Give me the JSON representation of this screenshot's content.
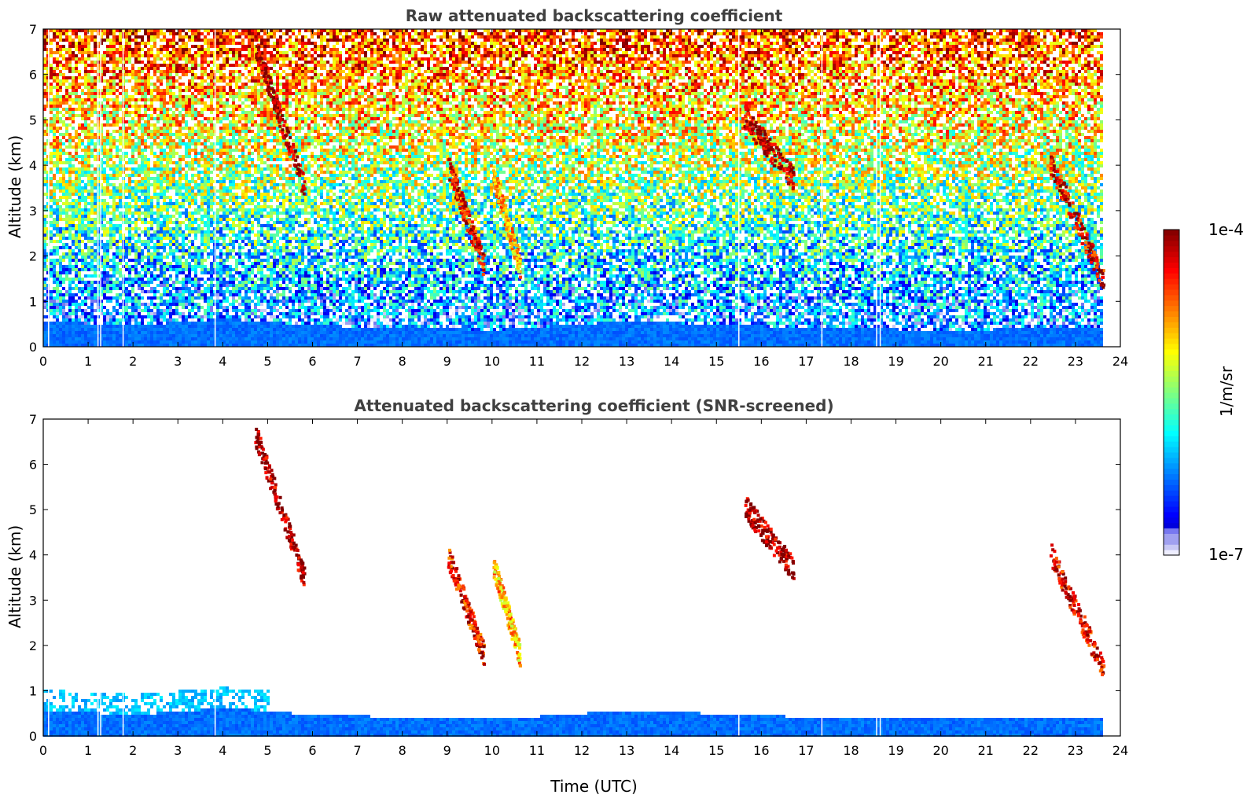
{
  "chart_data": [
    {
      "type": "heatmap",
      "title": "Raw attenuated backscattering coefficient",
      "xlabel": "",
      "ylabel": "Altitude (km)",
      "xlim": [
        0,
        24
      ],
      "ylim": [
        0,
        7
      ],
      "x_ticks": [
        0,
        1,
        2,
        3,
        4,
        5,
        6,
        7,
        8,
        9,
        10,
        11,
        12,
        13,
        14,
        15,
        16,
        17,
        18,
        19,
        20,
        21,
        22,
        23,
        24
      ],
      "y_ticks": [
        0,
        1,
        2,
        3,
        4,
        5,
        6,
        7
      ],
      "data_end_time": 23.6,
      "boundary_layer_top_km": [
        {
          "t": 0,
          "h": 0.6
        },
        {
          "t": 2,
          "h": 0.5
        },
        {
          "t": 4,
          "h": 0.65
        },
        {
          "t": 6,
          "h": 0.5
        },
        {
          "t": 10,
          "h": 0.4
        },
        {
          "t": 13,
          "h": 0.6
        },
        {
          "t": 17,
          "h": 0.45
        },
        {
          "t": 20,
          "h": 0.4
        },
        {
          "t": 23.6,
          "h": 0.45
        }
      ],
      "features": [
        {
          "name": "cirrus fall streak 1",
          "t_start": 4.7,
          "t_end": 5.8,
          "alt_top": 6.7,
          "alt_bottom": 3.5,
          "log10_value": -4.1
        },
        {
          "name": "virga 1",
          "t_start": 9.0,
          "t_end": 9.8,
          "alt_top": 4.0,
          "alt_bottom": 1.8,
          "log10_value": -4.4
        },
        {
          "name": "virga 2",
          "t_start": 10.0,
          "t_end": 10.6,
          "alt_top": 3.8,
          "alt_bottom": 1.8,
          "log10_value": -4.9
        },
        {
          "name": "mid-level cloud",
          "t_start": 15.6,
          "t_end": 16.7,
          "alt_top": 5.1,
          "alt_bottom": 3.7,
          "log10_value": -4.1
        },
        {
          "name": "late cloud",
          "t_start": 22.4,
          "t_end": 23.6,
          "alt_top": 4.1,
          "alt_bottom": 1.5,
          "log10_value": -4.3
        }
      ],
      "missing_profiles_utc": [
        0.12,
        1.22,
        1.28,
        1.78,
        3.83,
        15.5,
        17.35,
        18.57,
        18.65
      ]
    },
    {
      "type": "heatmap",
      "title": "Attenuated backscattering coefficient (SNR-screened)",
      "xlabel": "Time (UTC)",
      "ylabel": "Altitude (km)",
      "xlim": [
        0,
        24
      ],
      "ylim": [
        0,
        7
      ],
      "x_ticks": [
        0,
        1,
        2,
        3,
        4,
        5,
        6,
        7,
        8,
        9,
        10,
        11,
        12,
        13,
        14,
        15,
        16,
        17,
        18,
        19,
        20,
        21,
        22,
        23,
        24
      ],
      "y_ticks": [
        0,
        1,
        2,
        3,
        4,
        5,
        6,
        7
      ]
    }
  ],
  "colorbar": {
    "max_label": "1e-4",
    "min_label": "1e-7",
    "label": "1/m/sr",
    "scale": "log",
    "colormap": "jet",
    "low_end_colors": [
      "#eeeeff",
      "#c8c8f5",
      "#a0a0f0",
      "#7878f0"
    ]
  }
}
